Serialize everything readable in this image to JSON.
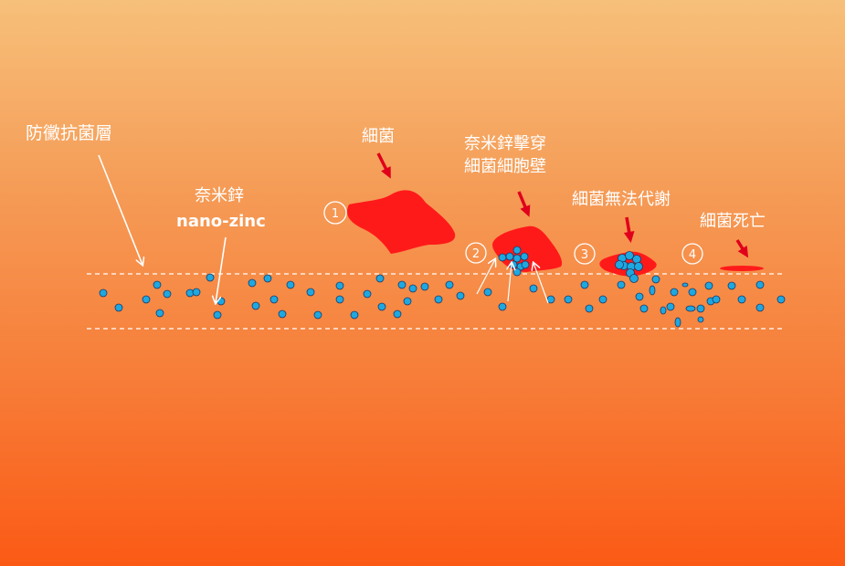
{
  "labels": {
    "coating_layer": "防黴抗菌層",
    "nano_zinc_cn": "奈米鋅",
    "nano_zinc_en": "nano-zinc",
    "bacteria": "細菌",
    "penetrate_line1": "奈米鋅擊穿",
    "penetrate_line2": "細菌細胞壁",
    "no_metabolism": "細菌無法代謝",
    "bacteria_dead": "細菌死亡"
  },
  "steps": [
    "1",
    "2",
    "3",
    "4"
  ],
  "colors": {
    "bacteria": "#ff1a1a",
    "zinc_particle": "#1ea8e0",
    "particle_stroke": "#1a3a6a",
    "arrow_red": "#e0001b",
    "line_white": "#ffffff"
  }
}
